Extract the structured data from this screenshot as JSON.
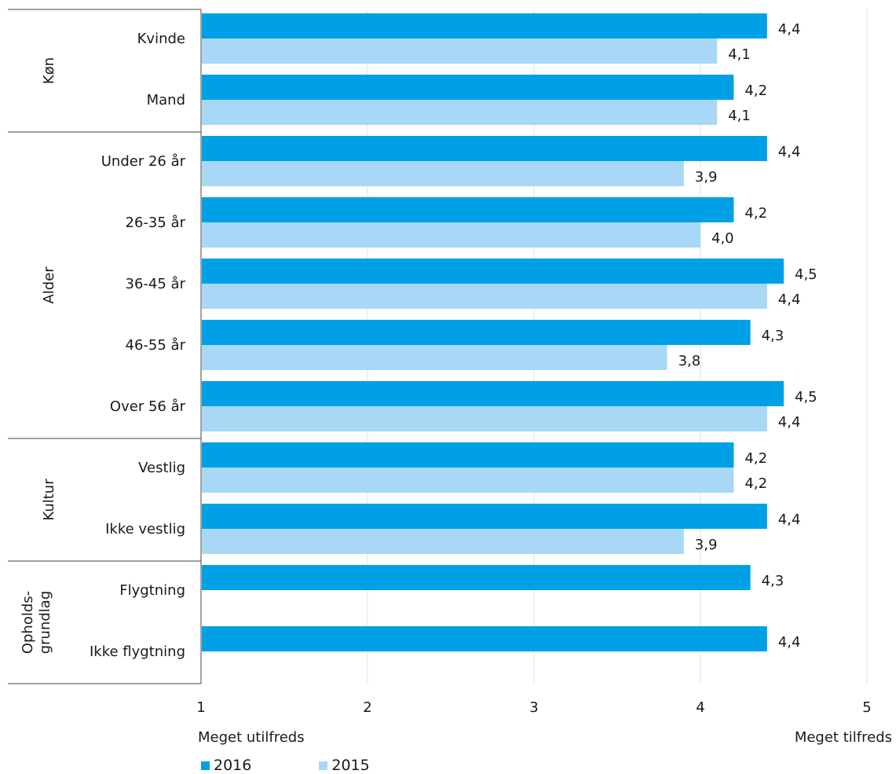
{
  "chart_data": {
    "type": "bar",
    "orientation": "horizontal",
    "x_range": [
      1,
      5
    ],
    "x_ticks": [
      "1",
      "2",
      "3",
      "4",
      "5"
    ],
    "x_low_label": "Meget utilfreds",
    "x_high_label": "Meget tilfreds",
    "grid": true,
    "legend_position": "bottom-left",
    "colors": {
      "2016": "#00a0e6",
      "2015": "#a8d8f5"
    },
    "groups": [
      {
        "label": "Køn",
        "categories": [
          "Kvinde",
          "Mand"
        ]
      },
      {
        "label": "Alder",
        "categories": [
          "Under 26 år",
          "26-35 år",
          "36-45 år",
          "46-55 år",
          "Over 56 år"
        ]
      },
      {
        "label": "Kultur",
        "categories": [
          "Vestlig",
          "Ikke vestlig"
        ]
      },
      {
        "label": "Opholds-\ngrundlag",
        "categories": [
          "Flygtning",
          "Ikke flygtning"
        ]
      }
    ],
    "categories": [
      "Kvinde",
      "Mand",
      "Under 26 år",
      "26-35 år",
      "36-45 år",
      "46-55 år",
      "Over 56 år",
      "Vestlig",
      "Ikke vestlig",
      "Flygtning",
      "Ikke flygtning"
    ],
    "series": [
      {
        "name": "2016",
        "values": [
          4.4,
          4.2,
          4.4,
          4.2,
          4.5,
          4.3,
          4.5,
          4.2,
          4.4,
          4.3,
          4.4
        ],
        "labels": [
          "4,4",
          "4,2",
          "4,4",
          "4,2",
          "4,5",
          "4,3",
          "4,5",
          "4,2",
          "4,4",
          "4,3",
          "4,4"
        ]
      },
      {
        "name": "2015",
        "values": [
          4.1,
          4.1,
          3.9,
          4.0,
          4.4,
          3.8,
          4.4,
          4.2,
          3.9,
          null,
          null
        ],
        "labels": [
          "4,1",
          "4,1",
          "3,9",
          "4,0",
          "4,4",
          "3,8",
          "4,4",
          "4,2",
          "3,9",
          null,
          null
        ]
      }
    ]
  }
}
